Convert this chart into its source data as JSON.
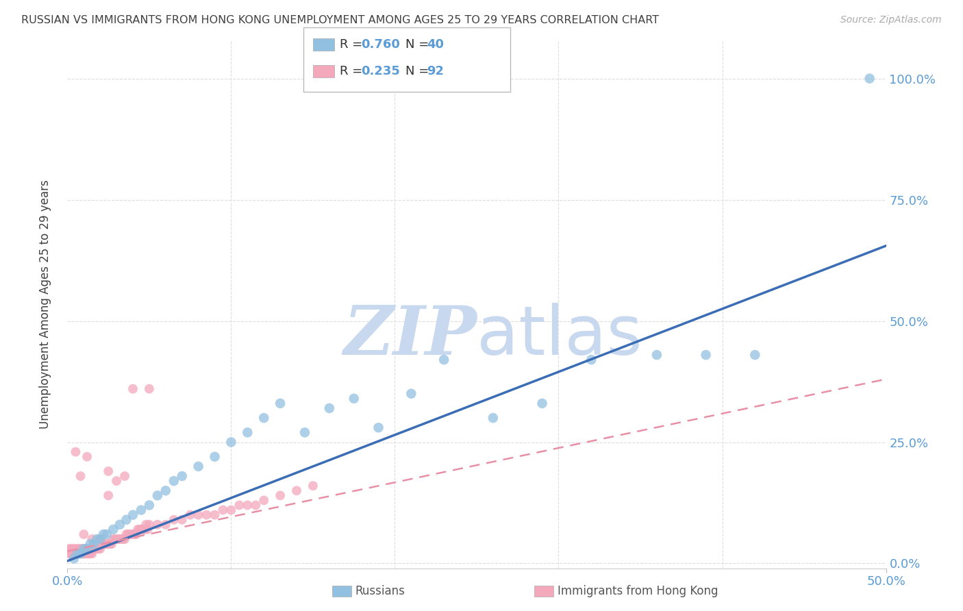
{
  "title": "RUSSIAN VS IMMIGRANTS FROM HONG KONG UNEMPLOYMENT AMONG AGES 25 TO 29 YEARS CORRELATION CHART",
  "source": "Source: ZipAtlas.com",
  "ylabel": "Unemployment Among Ages 25 to 29 years",
  "xlim": [
    0.0,
    0.5
  ],
  "ylim": [
    -0.01,
    1.08
  ],
  "xticks": [
    0.0,
    0.5
  ],
  "yticks": [
    0.0,
    0.25,
    0.5,
    0.75,
    1.0
  ],
  "ytick_labels": [
    "0.0%",
    "25.0%",
    "50.0%",
    "75.0%",
    "100.0%"
  ],
  "xtick_labels": [
    "0.0%",
    "50.0%"
  ],
  "blue_color": "#92C0E0",
  "pink_color": "#F4A8BC",
  "blue_line_color": "#3A6DB5",
  "pink_line_color": "#E88FA5",
  "title_color": "#404040",
  "axis_label_color": "#5B9BD5",
  "watermark_color": "#C8D8EE",
  "legend_R1": "R = 0.760",
  "legend_N1": "N = 40",
  "legend_R2": "R = 0.235",
  "legend_N2": "N = 92",
  "legend_label1": "Russians",
  "legend_label2": "Immigrants from Hong Kong",
  "blue_scatter_x": [
    0.004,
    0.006,
    0.008,
    0.01,
    0.012,
    0.014,
    0.016,
    0.018,
    0.02,
    0.022,
    0.024,
    0.028,
    0.032,
    0.036,
    0.04,
    0.045,
    0.05,
    0.055,
    0.06,
    0.065,
    0.07,
    0.08,
    0.09,
    0.1,
    0.11,
    0.12,
    0.13,
    0.145,
    0.16,
    0.175,
    0.19,
    0.21,
    0.23,
    0.26,
    0.29,
    0.32,
    0.36,
    0.39,
    0.42,
    0.49
  ],
  "blue_scatter_y": [
    0.01,
    0.02,
    0.02,
    0.03,
    0.03,
    0.04,
    0.04,
    0.05,
    0.05,
    0.06,
    0.06,
    0.07,
    0.08,
    0.09,
    0.1,
    0.11,
    0.12,
    0.14,
    0.15,
    0.17,
    0.18,
    0.2,
    0.22,
    0.25,
    0.27,
    0.3,
    0.33,
    0.27,
    0.32,
    0.34,
    0.28,
    0.35,
    0.42,
    0.3,
    0.33,
    0.42,
    0.43,
    0.43,
    0.43,
    1.0
  ],
  "pink_scatter_x": [
    0.001,
    0.001,
    0.002,
    0.002,
    0.003,
    0.003,
    0.004,
    0.004,
    0.005,
    0.005,
    0.006,
    0.006,
    0.007,
    0.007,
    0.008,
    0.008,
    0.009,
    0.009,
    0.01,
    0.01,
    0.011,
    0.011,
    0.012,
    0.012,
    0.013,
    0.013,
    0.014,
    0.015,
    0.016,
    0.017,
    0.018,
    0.019,
    0.02,
    0.021,
    0.022,
    0.023,
    0.024,
    0.025,
    0.026,
    0.027,
    0.028,
    0.029,
    0.03,
    0.031,
    0.032,
    0.033,
    0.034,
    0.035,
    0.036,
    0.037,
    0.038,
    0.039,
    0.04,
    0.041,
    0.042,
    0.043,
    0.044,
    0.045,
    0.046,
    0.047,
    0.048,
    0.049,
    0.05,
    0.055,
    0.06,
    0.065,
    0.07,
    0.075,
    0.08,
    0.085,
    0.09,
    0.095,
    0.1,
    0.105,
    0.11,
    0.115,
    0.12,
    0.13,
    0.14,
    0.15,
    0.005,
    0.01,
    0.015,
    0.02,
    0.025,
    0.03,
    0.035,
    0.025,
    0.04,
    0.05,
    0.008,
    0.012
  ],
  "pink_scatter_y": [
    0.02,
    0.03,
    0.02,
    0.03,
    0.02,
    0.03,
    0.02,
    0.03,
    0.02,
    0.03,
    0.02,
    0.03,
    0.02,
    0.03,
    0.02,
    0.03,
    0.02,
    0.03,
    0.02,
    0.03,
    0.02,
    0.03,
    0.02,
    0.03,
    0.02,
    0.03,
    0.02,
    0.02,
    0.03,
    0.03,
    0.03,
    0.03,
    0.03,
    0.04,
    0.04,
    0.04,
    0.04,
    0.04,
    0.04,
    0.04,
    0.05,
    0.05,
    0.05,
    0.05,
    0.05,
    0.05,
    0.05,
    0.05,
    0.06,
    0.06,
    0.06,
    0.06,
    0.06,
    0.06,
    0.06,
    0.07,
    0.07,
    0.07,
    0.07,
    0.07,
    0.08,
    0.07,
    0.08,
    0.08,
    0.08,
    0.09,
    0.09,
    0.1,
    0.1,
    0.1,
    0.1,
    0.11,
    0.11,
    0.12,
    0.12,
    0.12,
    0.13,
    0.14,
    0.15,
    0.16,
    0.23,
    0.06,
    0.05,
    0.05,
    0.14,
    0.17,
    0.18,
    0.19,
    0.36,
    0.36,
    0.18,
    0.22
  ],
  "blue_regline_x": [
    0.0,
    0.5
  ],
  "blue_regline_y": [
    0.005,
    0.655
  ],
  "pink_regline_x": [
    0.0,
    0.5
  ],
  "pink_regline_y": [
    0.025,
    0.38
  ],
  "grid_color": "#DDDDDD",
  "background_color": "#FFFFFF"
}
